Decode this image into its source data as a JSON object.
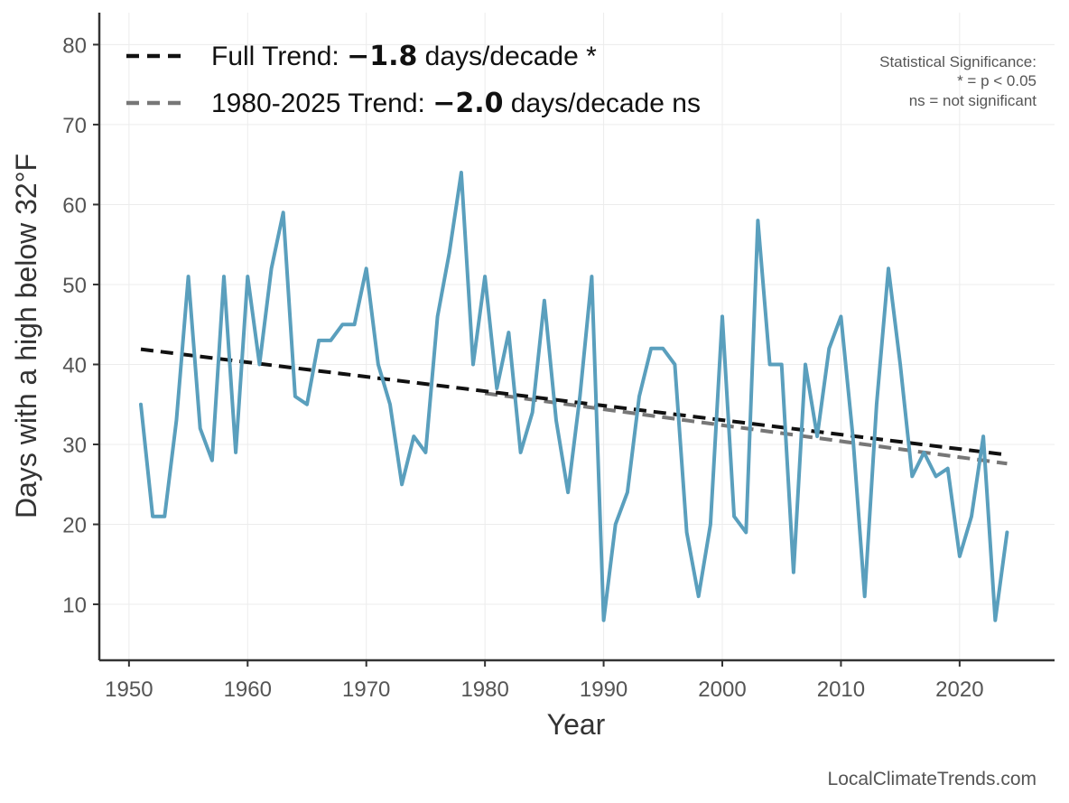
{
  "chart_data": {
    "type": "line",
    "xlabel": "Year",
    "ylabel": "Days with a high below 32°F",
    "xlim": [
      1947.5,
      2028
    ],
    "ylim": [
      3,
      84
    ],
    "xticks": [
      1950,
      1960,
      1970,
      1980,
      1990,
      2000,
      2010,
      2020
    ],
    "yticks": [
      10,
      20,
      30,
      40,
      50,
      60,
      70,
      80
    ],
    "grid": true,
    "series": [
      {
        "name": "Days with a high below 32°F",
        "color": "#5a9fbd",
        "x": [
          1951,
          1952,
          1953,
          1954,
          1955,
          1956,
          1957,
          1958,
          1959,
          1960,
          1961,
          1962,
          1963,
          1964,
          1965,
          1966,
          1967,
          1968,
          1969,
          1970,
          1971,
          1972,
          1973,
          1974,
          1975,
          1976,
          1977,
          1978,
          1979,
          1980,
          1981,
          1982,
          1983,
          1984,
          1985,
          1986,
          1987,
          1988,
          1989,
          1990,
          1991,
          1992,
          1993,
          1994,
          1995,
          1996,
          1997,
          1998,
          1999,
          2000,
          2001,
          2002,
          2003,
          2004,
          2005,
          2006,
          2007,
          2008,
          2009,
          2010,
          2011,
          2012,
          2013,
          2014,
          2015,
          2016,
          2017,
          2018,
          2019,
          2020,
          2021,
          2022,
          2023,
          2024
        ],
        "values": [
          35,
          21,
          21,
          33,
          51,
          32,
          28,
          51,
          29,
          51,
          40,
          52,
          59,
          36,
          35,
          43,
          43,
          45,
          45,
          52,
          40,
          35,
          25,
          31,
          29,
          46,
          54,
          64,
          40,
          51,
          37,
          44,
          29,
          34,
          48,
          33,
          24,
          36,
          51,
          8,
          20,
          24,
          36,
          42,
          42,
          40,
          19,
          11,
          20,
          46,
          21,
          19,
          58,
          40,
          40,
          14,
          40,
          31,
          42,
          46,
          31,
          11,
          35,
          52,
          40,
          26,
          29,
          26,
          27,
          16,
          21,
          31,
          8,
          19
        ]
      }
    ],
    "trends": [
      {
        "name": "Full Trend",
        "color": "#111111",
        "x": [
          1951,
          2024
        ],
        "values": [
          41.9,
          28.7
        ]
      },
      {
        "name": "1980-2025 Trend",
        "color": "#777777",
        "x": [
          1980,
          2024
        ],
        "values": [
          36.4,
          27.6
        ]
      }
    ],
    "legend": [
      {
        "prefix": "Full Trend: ",
        "value": "−1.8",
        "suffix": " days/decade *",
        "color": "#111111"
      },
      {
        "prefix": "1980-2025 Trend: ",
        "value": "−2.0",
        "suffix": " days/decade ns",
        "color": "#777777"
      }
    ],
    "significance_note": [
      "Statistical Significance:",
      "* = p < 0.05",
      "ns = not significant"
    ],
    "credit": "LocalClimateTrends.com"
  }
}
